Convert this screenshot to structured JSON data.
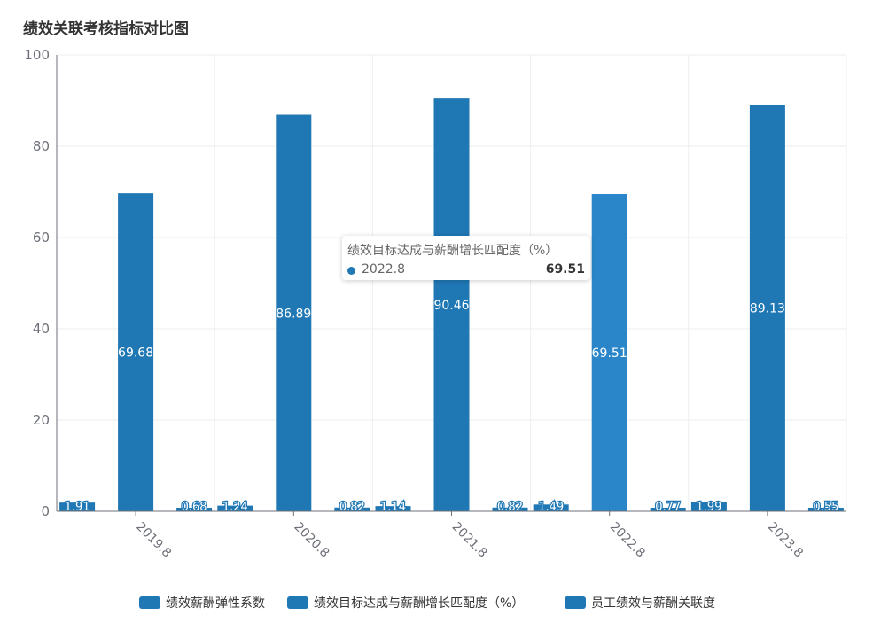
{
  "chart_data": {
    "type": "bar",
    "title": "绩效关联考核指标对比图",
    "categories": [
      "2019.8",
      "2020.8",
      "2021.8",
      "2022.8",
      "2023.8"
    ],
    "series": [
      {
        "name": "绩效薪酬弹性系数",
        "values": [
          1.91,
          1.24,
          1.14,
          1.49,
          1.99
        ]
      },
      {
        "name": "绩效目标达成与薪酬增长匹配度（%）",
        "values": [
          69.68,
          86.89,
          90.46,
          69.51,
          89.13
        ]
      },
      {
        "name": "员工绩效与薪酬关联度",
        "values": [
          0.68,
          0.82,
          0.82,
          0.77,
          0.55
        ]
      }
    ],
    "ylim": [
      0,
      100
    ],
    "yticks": [
      0,
      20,
      40,
      60,
      80,
      100
    ],
    "grid": true,
    "legend_position": "bottom",
    "bar_color": "#1f77b4",
    "highlight_color": "#2a86c8"
  },
  "tooltip": {
    "title": "绩效目标达成与薪酬增长匹配度（%）",
    "name": "2022.8",
    "value": "69.51"
  }
}
